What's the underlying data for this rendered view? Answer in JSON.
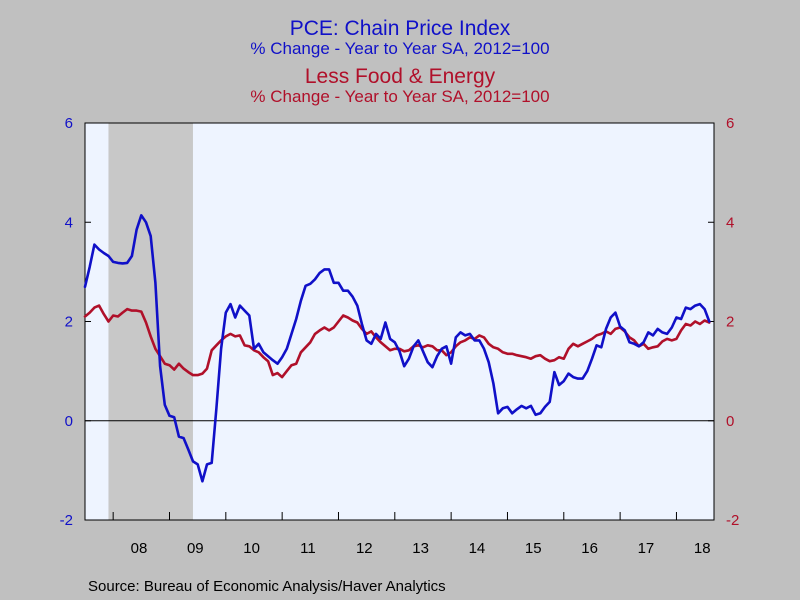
{
  "chart_data": {
    "type": "line",
    "title": "PCE: Chain Price Index",
    "subtitle": "% Change - Year to Year     SA, 2012=100",
    "title2": "Less Food & Energy",
    "subtitle2": "% Change - Year to Year     SA, 2012=100",
    "source": "Source:  Bureau of Economic Analysis/Haver Analytics",
    "colors": {
      "series1": "#1010c8",
      "series2": "#b0102a",
      "plot_bg": "#eef4ff",
      "recession": "#c8c8c8",
      "page_bg": "#c0c0c0"
    },
    "ylim": [
      -2,
      6
    ],
    "left_ticks": [
      "6",
      "4",
      "2",
      "0",
      "-2"
    ],
    "right_ticks": [
      "6",
      "4",
      "2",
      "0",
      "-2"
    ],
    "tick_values": [
      6,
      4,
      2,
      0,
      -2
    ],
    "x_range": [
      "2007-07",
      "2018-09"
    ],
    "x_year_labels": [
      "08",
      "09",
      "10",
      "11",
      "12",
      "13",
      "14",
      "15",
      "16",
      "17",
      "18"
    ],
    "recession_shading": [
      "2007-12",
      "2009-06"
    ],
    "zero_line": true,
    "series": [
      {
        "start": "2007-07",
        "values": [
          2.7,
          3.1,
          3.55,
          3.45,
          3.38,
          3.32,
          3.2,
          3.18,
          3.17,
          3.18,
          3.32,
          3.85,
          4.14,
          4.0,
          3.72,
          2.78,
          1.1,
          0.32,
          0.1,
          0.07,
          -0.32,
          -0.35,
          -0.58,
          -0.82,
          -0.88,
          -1.22,
          -0.88,
          -0.85,
          0.25,
          1.45,
          2.18,
          2.35,
          2.08,
          2.32,
          2.22,
          2.12,
          1.45,
          1.55,
          1.38,
          1.3,
          1.22,
          1.15,
          1.28,
          1.45,
          1.75,
          2.05,
          2.42,
          2.72,
          2.76,
          2.85,
          2.98,
          3.05,
          3.05,
          2.78,
          2.78,
          2.62,
          2.62,
          2.5,
          2.32,
          1.95,
          1.62,
          1.55,
          1.75,
          1.65,
          1.98,
          1.65,
          1.58,
          1.4,
          1.1,
          1.25,
          1.5,
          1.62,
          1.4,
          1.18,
          1.08,
          1.3,
          1.45,
          1.5,
          1.15,
          1.68,
          1.78,
          1.72,
          1.75,
          1.62,
          1.62,
          1.45,
          1.18,
          0.75,
          0.15,
          0.25,
          0.28,
          0.15,
          0.23,
          0.3,
          0.25,
          0.3,
          0.12,
          0.15,
          0.28,
          0.38,
          0.98,
          0.72,
          0.8,
          0.95,
          0.88,
          0.85,
          0.85,
          1.0,
          1.25,
          1.52,
          1.48,
          1.85,
          2.08,
          2.18,
          1.9,
          1.82,
          1.58,
          1.55,
          1.5,
          1.58,
          1.78,
          1.72,
          1.85,
          1.78,
          1.75,
          1.88,
          2.08,
          2.05,
          2.28,
          2.25,
          2.32,
          2.35,
          2.25,
          2.0
        ]
      },
      {
        "start": "2007-07",
        "values": [
          2.1,
          2.18,
          2.28,
          2.32,
          2.15,
          2.0,
          2.12,
          2.1,
          2.18,
          2.25,
          2.22,
          2.22,
          2.2,
          1.98,
          1.7,
          1.45,
          1.3,
          1.15,
          1.12,
          1.03,
          1.15,
          1.05,
          0.98,
          0.92,
          0.92,
          0.95,
          1.05,
          1.42,
          1.52,
          1.62,
          1.7,
          1.75,
          1.7,
          1.72,
          1.52,
          1.5,
          1.42,
          1.38,
          1.28,
          1.2,
          0.92,
          0.96,
          0.88,
          1.0,
          1.12,
          1.15,
          1.38,
          1.48,
          1.58,
          1.75,
          1.82,
          1.88,
          1.82,
          1.88,
          2.0,
          2.12,
          2.08,
          2.02,
          1.98,
          1.85,
          1.75,
          1.8,
          1.68,
          1.58,
          1.5,
          1.42,
          1.45,
          1.45,
          1.4,
          1.42,
          1.5,
          1.52,
          1.48,
          1.52,
          1.5,
          1.42,
          1.42,
          1.32,
          1.38,
          1.5,
          1.58,
          1.62,
          1.68,
          1.65,
          1.72,
          1.68,
          1.55,
          1.48,
          1.45,
          1.38,
          1.35,
          1.35,
          1.32,
          1.3,
          1.28,
          1.25,
          1.3,
          1.32,
          1.25,
          1.2,
          1.22,
          1.28,
          1.25,
          1.45,
          1.55,
          1.5,
          1.55,
          1.6,
          1.65,
          1.72,
          1.75,
          1.8,
          1.75,
          1.85,
          1.88,
          1.8,
          1.68,
          1.62,
          1.5,
          1.55,
          1.45,
          1.48,
          1.5,
          1.6,
          1.65,
          1.62,
          1.65,
          1.82,
          1.95,
          1.92,
          2.0,
          1.95,
          2.02,
          1.98
        ]
      }
    ]
  }
}
